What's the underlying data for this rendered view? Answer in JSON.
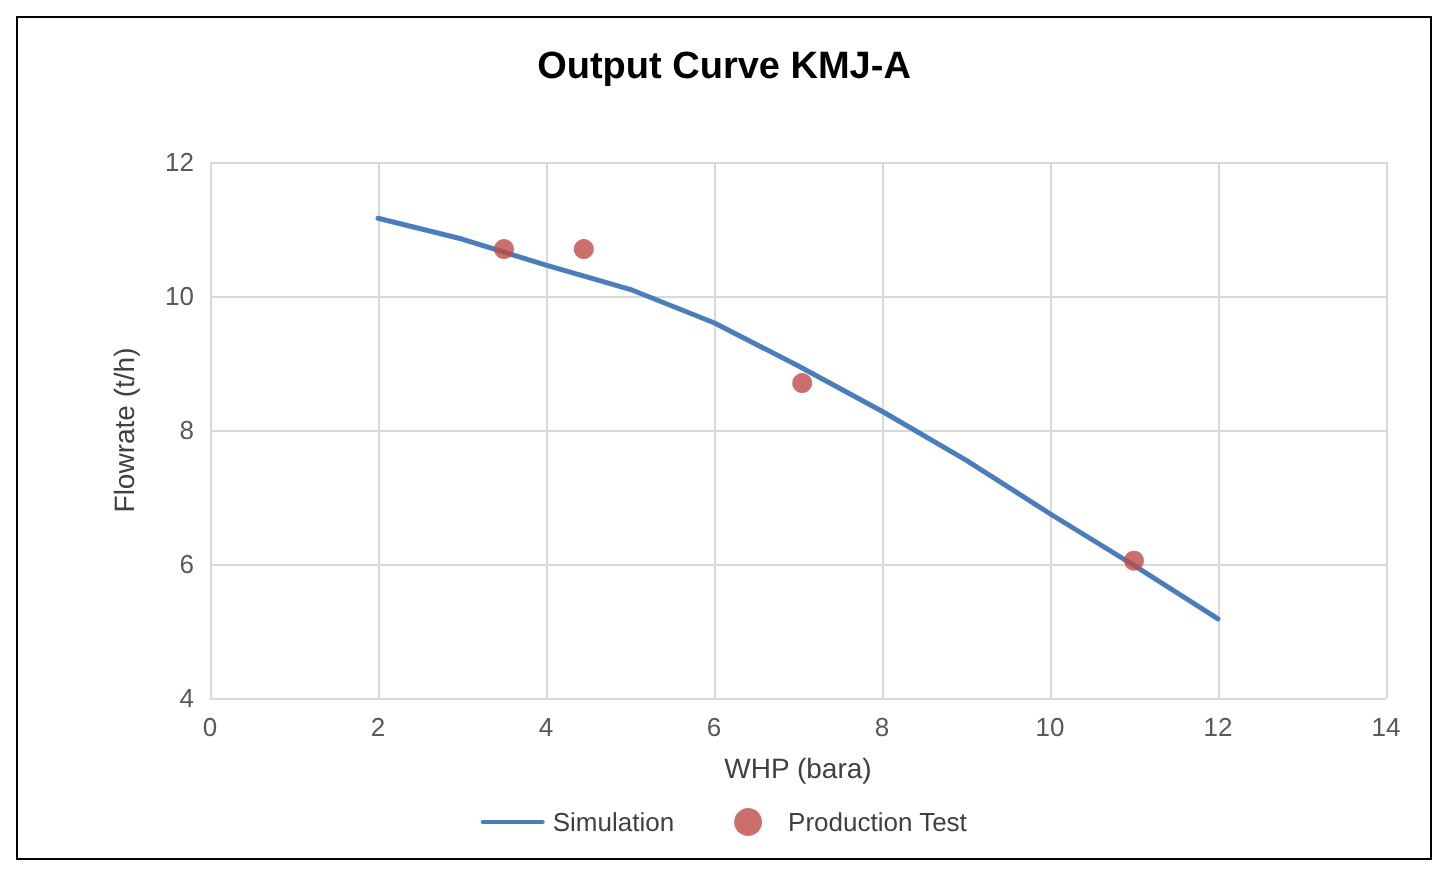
{
  "chart_data": {
    "type": "line",
    "title": "Output Curve KMJ-A",
    "xlabel": "WHP (bara)",
    "ylabel": "Flowrate (t/h)",
    "xlim": [
      0,
      14
    ],
    "xticks": [
      0,
      2,
      4,
      6,
      8,
      10,
      12,
      14
    ],
    "ylim": [
      4,
      12
    ],
    "yticks": [
      4,
      6,
      8,
      10,
      12
    ],
    "grid": true,
    "legend": "bottom",
    "series": [
      {
        "name": "Simulation",
        "color": "#4a7ebb",
        "marker": "none",
        "x": [
          2,
          3,
          4,
          5,
          6,
          7,
          8,
          9,
          10,
          11,
          12
        ],
        "values": [
          11.16,
          10.85,
          10.46,
          10.1,
          9.6,
          8.96,
          8.28,
          7.55,
          6.75,
          5.98,
          5.18
        ]
      },
      {
        "name": "Production Test",
        "type": "scatter",
        "color": "#be4b48",
        "marker": "circle",
        "x": [
          3.5,
          4.45,
          7.05,
          11
        ],
        "values": [
          10.7,
          10.7,
          8.7,
          6.05
        ]
      }
    ]
  }
}
